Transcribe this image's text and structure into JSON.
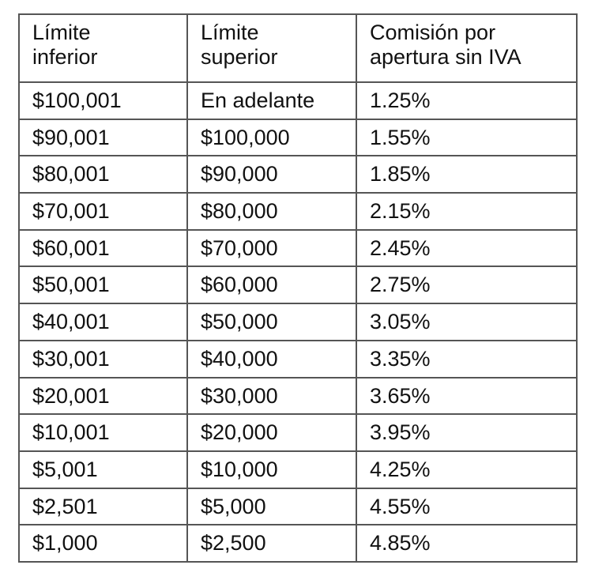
{
  "table": {
    "headers": [
      {
        "line1": "Límite",
        "line2": "inferior"
      },
      {
        "line1": "Límite",
        "line2": "superior"
      },
      {
        "line1": "Comisión por",
        "line2": "apertura sin IVA"
      }
    ],
    "rows": [
      [
        "$100,001",
        "En adelante",
        "1.25%"
      ],
      [
        "$90,001",
        "$100,000",
        "1.55%"
      ],
      [
        "$80,001",
        "$90,000",
        "1.85%"
      ],
      [
        "$70,001",
        "$80,000",
        "2.15%"
      ],
      [
        "$60,001",
        "$70,000",
        "2.45%"
      ],
      [
        "$50,001",
        "$60,000",
        "2.75%"
      ],
      [
        "$40,001",
        "$50,000",
        "3.05%"
      ],
      [
        "$30,001",
        "$40,000",
        "3.35%"
      ],
      [
        "$20,001",
        "$30,000",
        "3.65%"
      ],
      [
        "$10,001",
        "$20,000",
        "3.95%"
      ],
      [
        "$5,001",
        "$10,000",
        "4.25%"
      ],
      [
        "$2,501",
        "$5,000",
        "4.55%"
      ],
      [
        "$1,000",
        "$2,500",
        "4.85%"
      ]
    ]
  }
}
